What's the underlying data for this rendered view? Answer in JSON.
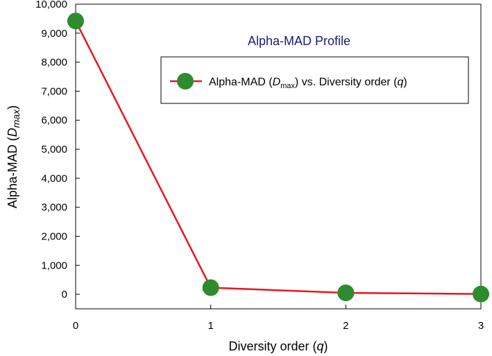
{
  "chart_data": {
    "type": "line",
    "title": "Alpha-MAD Profile",
    "xlabel": {
      "prefix": "Diversity order (",
      "var": "q",
      "suffix": ")"
    },
    "ylabel": {
      "prefix": "Alpha-MAD (",
      "var": "D",
      "sub": "max",
      "suffix": ")"
    },
    "x": [
      0,
      1,
      2,
      3
    ],
    "xlim": [
      0,
      3
    ],
    "xticks": [
      "0",
      "1",
      "2",
      "3"
    ],
    "ylim": [
      -500,
      10000
    ],
    "yticks": [
      0,
      1000,
      2000,
      3000,
      4000,
      5000,
      6000,
      7000,
      8000,
      9000,
      10000
    ],
    "ytick_labels": [
      "0",
      "1,000",
      "2,000",
      "3,000",
      "4,000",
      "5,000",
      "6,000",
      "7,000",
      "8,000",
      "9,000",
      "10,000"
    ],
    "series": [
      {
        "values": [
          9420,
          230,
          50,
          10
        ],
        "legend": {
          "prefix": "Alpha-MAD (",
          "var": "D",
          "sub": "max",
          "middle": ") vs. Diversity order (",
          "var2": "q",
          "suffix": ")"
        }
      }
    ],
    "grid": false,
    "legend_position": "top-right",
    "colors": {
      "line": "#e8161b",
      "marker": "#2e8b2e",
      "title": "#1a1a7a",
      "axis": "#000000"
    }
  }
}
